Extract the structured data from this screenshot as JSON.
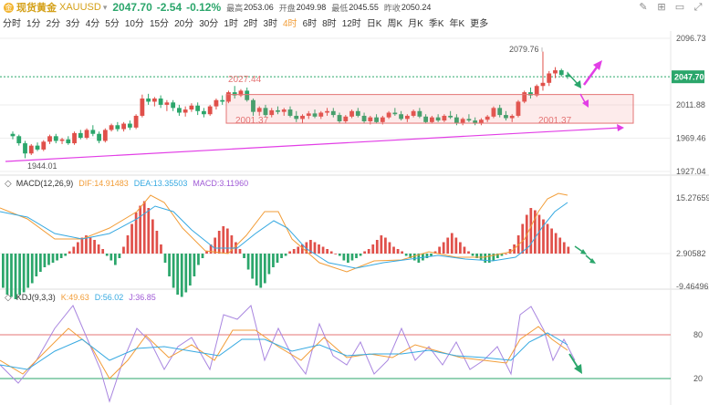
{
  "header": {
    "coin_glyph": "金",
    "name": "现货黄金",
    "code": "XAUUSD",
    "chevron": "▾",
    "price": "2047.70",
    "change": "-2.54",
    "change_pct": "-0.12%",
    "high_label": "最高",
    "high": "2053.06",
    "open_label": "开盘",
    "open": "2049.98",
    "low_label": "最低",
    "low": "2045.55",
    "prev_label": "昨收",
    "prev": "2050.24"
  },
  "tools": [
    "✎",
    "⊞",
    "▭",
    "⤢"
  ],
  "tabs": [
    "分时",
    "1分",
    "2分",
    "3分",
    "4分",
    "5分",
    "10分",
    "15分",
    "20分",
    "30分",
    "1时",
    "2时",
    "3时",
    "4时",
    "6时",
    "8时",
    "12时",
    "日K",
    "周K",
    "月K",
    "季K",
    "年K",
    "更多"
  ],
  "active_tab": "4时",
  "colors": {
    "up": "#e0504a",
    "down": "#2ba66b",
    "grid": "#eeeeee",
    "dif": "#f29d38",
    "dea": "#36a9e1",
    "trend": "#e23ee6"
  },
  "price_axis": {
    "ticks": [
      "2096.73",
      "2047.70",
      "2011.88",
      "1969.46",
      "1927.04"
    ],
    "current": "2047.70"
  },
  "annotations": {
    "high": "2079.76",
    "low": "1944.01",
    "box_top": "2027.44",
    "box_bottom_left": "2001.37",
    "box_bottom_right": "2001.37"
  },
  "macd": {
    "icon": "◇",
    "name": "MACD(12,26,9)",
    "dif": "DIF:14.91483",
    "dea": "DEA:13.35503",
    "macd": "MACD:3.11960",
    "ticks": [
      "15.27659",
      "2.90582",
      "-9.46496"
    ]
  },
  "kdj": {
    "icon": "◇",
    "name": "KDJ(9,3,3)",
    "k": "K:49.63",
    "d": "D:56.02",
    "j": "J:36.85",
    "ticks": [
      "80",
      "20"
    ]
  },
  "chart_data": {
    "type": "candlestick",
    "ylim": [
      1927.04,
      2096.73
    ],
    "candles": [
      [
        1975,
        1978,
        1968,
        1972
      ],
      [
        1972,
        1974,
        1960,
        1963
      ],
      [
        1963,
        1966,
        1944,
        1950
      ],
      [
        1950,
        1962,
        1948,
        1960
      ],
      [
        1960,
        1964,
        1953,
        1955
      ],
      [
        1955,
        1967,
        1953,
        1965
      ],
      [
        1965,
        1974,
        1962,
        1972
      ],
      [
        1972,
        1975,
        1963,
        1966
      ],
      [
        1966,
        1970,
        1962,
        1968
      ],
      [
        1968,
        1972,
        1961,
        1963
      ],
      [
        1963,
        1978,
        1961,
        1976
      ],
      [
        1976,
        1980,
        1968,
        1970
      ],
      [
        1970,
        1982,
        1968,
        1980
      ],
      [
        1980,
        1986,
        1972,
        1975
      ],
      [
        1975,
        1978,
        1963,
        1966
      ],
      [
        1966,
        1982,
        1964,
        1980
      ],
      [
        1980,
        1988,
        1978,
        1986
      ],
      [
        1986,
        1990,
        1978,
        1981
      ],
      [
        1981,
        1990,
        1978,
        1988
      ],
      [
        1988,
        1992,
        1980,
        1983
      ],
      [
        1983,
        2000,
        1981,
        1998
      ],
      [
        1998,
        2025,
        1996,
        2020
      ],
      [
        2020,
        2026,
        2012,
        2016
      ],
      [
        2016,
        2022,
        2010,
        2020
      ],
      [
        2020,
        2024,
        2008,
        2012
      ],
      [
        2012,
        2018,
        2004,
        2015
      ],
      [
        2015,
        2018,
        2004,
        2008
      ],
      [
        2008,
        2012,
        1998,
        2002
      ],
      [
        2002,
        2010,
        1997,
        2006
      ],
      [
        2006,
        2014,
        2003,
        2011
      ],
      [
        2011,
        2015,
        1999,
        2004
      ],
      [
        2004,
        2008,
        1996,
        2000
      ],
      [
        2000,
        2012,
        1998,
        2010
      ],
      [
        2010,
        2020,
        2006,
        2018
      ],
      [
        2018,
        2024,
        2012,
        2016
      ],
      [
        2016,
        2030,
        2014,
        2028
      ],
      [
        2028,
        2036,
        2020,
        2024
      ],
      [
        2024,
        2032,
        2022,
        2030
      ],
      [
        2030,
        2034,
        2016,
        2018
      ],
      [
        2018,
        2020,
        1998,
        2003
      ],
      [
        2003,
        2010,
        1998,
        2008
      ],
      [
        2008,
        2012,
        1996,
        1999
      ],
      [
        1999,
        2008,
        1996,
        2005
      ],
      [
        2005,
        2010,
        2000,
        2003
      ],
      [
        2003,
        2008,
        1998,
        2006
      ],
      [
        2006,
        2010,
        1996,
        1998
      ],
      [
        1998,
        2004,
        1990,
        1994
      ],
      [
        1994,
        2000,
        1988,
        1998
      ],
      [
        1998,
        2004,
        1994,
        2001
      ],
      [
        2001,
        2006,
        1995,
        1997
      ],
      [
        1997,
        2004,
        1994,
        2002
      ],
      [
        2002,
        2008,
        1998,
        2004
      ],
      [
        2004,
        2008,
        1996,
        1999
      ],
      [
        1999,
        2002,
        1988,
        1991
      ],
      [
        1991,
        1999,
        1988,
        1997
      ],
      [
        1997,
        2006,
        1995,
        2004
      ],
      [
        2004,
        2008,
        1996,
        1998
      ],
      [
        1998,
        2002,
        1988,
        1991
      ],
      [
        1991,
        1998,
        1987,
        1996
      ],
      [
        1996,
        2000,
        1988,
        1990
      ],
      [
        1990,
        1998,
        1987,
        1996
      ],
      [
        1996,
        2004,
        1994,
        2002
      ],
      [
        2002,
        2008,
        1998,
        2000
      ],
      [
        2000,
        2004,
        1992,
        1994
      ],
      [
        1994,
        2000,
        1990,
        1998
      ],
      [
        1998,
        2006,
        1996,
        2004
      ],
      [
        2004,
        2008,
        1995,
        1997
      ],
      [
        1997,
        2000,
        1988,
        1990
      ],
      [
        1990,
        1998,
        1988,
        1996
      ],
      [
        1996,
        2000,
        1990,
        1992
      ],
      [
        1992,
        2000,
        1990,
        1998
      ],
      [
        1998,
        2004,
        1994,
        1996
      ],
      [
        1996,
        2000,
        1986,
        1989
      ],
      [
        1989,
        1996,
        1986,
        1994
      ],
      [
        1994,
        2000,
        1990,
        1992
      ],
      [
        1992,
        1996,
        1986,
        1988
      ],
      [
        1988,
        1995,
        1986,
        1993
      ],
      [
        1993,
        1999,
        1990,
        1997
      ],
      [
        1997,
        2010,
        1995,
        2008
      ],
      [
        2008,
        2012,
        1996,
        1999
      ],
      [
        1999,
        2004,
        1992,
        1995
      ],
      [
        1995,
        2000,
        1990,
        1998
      ],
      [
        1998,
        2018,
        1996,
        2016
      ],
      [
        2016,
        2030,
        2014,
        2028
      ],
      [
        2028,
        2034,
        2020,
        2024
      ],
      [
        2024,
        2038,
        2022,
        2036
      ],
      [
        2036,
        2079.76,
        2030,
        2040
      ],
      [
        2040,
        2055,
        2036,
        2052
      ],
      [
        2052,
        2060,
        2046,
        2056
      ],
      [
        2056,
        2058,
        2048,
        2050
      ],
      [
        2050,
        2054,
        2045,
        2047.7
      ]
    ]
  }
}
